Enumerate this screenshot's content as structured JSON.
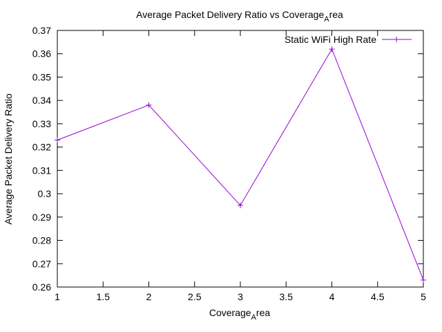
{
  "chart_data": {
    "type": "line",
    "title": "Average Packet Delivery Ratio vs Coverage",
    "title_subscript": "A",
    "title_tail": "rea",
    "xlabel": "Coverage",
    "xlabel_subscript": "A",
    "xlabel_tail": "rea",
    "ylabel": "Average Packet Delivery Ratio",
    "xlim": [
      1,
      5
    ],
    "ylim": [
      0.26,
      0.37
    ],
    "xticks": [
      1,
      1.5,
      2,
      2.5,
      3,
      3.5,
      4,
      4.5,
      5
    ],
    "xtick_labels": [
      "1",
      "1.5",
      "2",
      "2.5",
      "3",
      "3.5",
      "4",
      "4.5",
      "5"
    ],
    "yticks": [
      0.26,
      0.27,
      0.28,
      0.29,
      0.3,
      0.31,
      0.32,
      0.33,
      0.34,
      0.35,
      0.36,
      0.37
    ],
    "ytick_labels": [
      "0.26",
      "0.27",
      "0.28",
      "0.29",
      "0.3",
      "0.31",
      "0.32",
      "0.33",
      "0.34",
      "0.35",
      "0.36",
      "0.37"
    ],
    "grid": false,
    "legend_position": "top-right",
    "series": [
      {
        "name": "Static WiFi High Rate",
        "color": "#9400d3",
        "marker": "plus",
        "x": [
          1,
          2,
          3,
          4,
          5
        ],
        "y": [
          0.323,
          0.338,
          0.295,
          0.362,
          0.263
        ]
      }
    ]
  }
}
